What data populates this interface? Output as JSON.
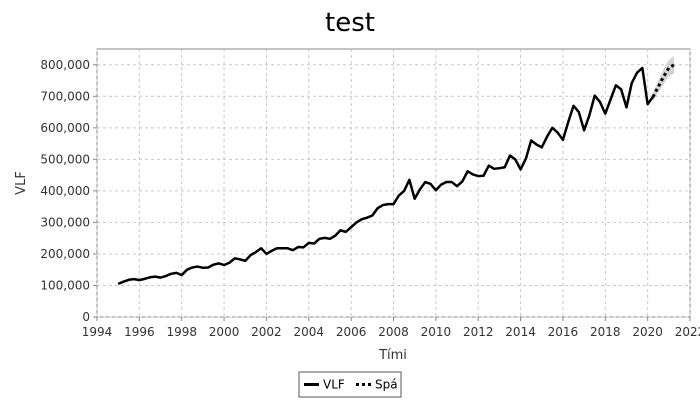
{
  "chart_data": {
    "type": "line",
    "title": "test",
    "xlabel": "Tími",
    "ylabel": "VLF",
    "xlim": [
      1994,
      2022
    ],
    "ylim": [
      0,
      850000
    ],
    "x_ticks": [
      1994,
      1996,
      1998,
      2000,
      2002,
      2004,
      2006,
      2008,
      2010,
      2012,
      2014,
      2016,
      2018,
      2020,
      2022
    ],
    "y_ticks": [
      0,
      100000,
      200000,
      300000,
      400000,
      500000,
      600000,
      700000,
      800000
    ],
    "y_tick_labels": [
      "0",
      "100,000",
      "200,000",
      "300,000",
      "400,000",
      "500,000",
      "600,000",
      "700,000",
      "800,000"
    ],
    "grid": true,
    "legend_position": "bottom-center",
    "series": [
      {
        "name": "VLF",
        "style": "solid",
        "color": "#000000",
        "x": [
          1995.0,
          1995.25,
          1995.5,
          1995.75,
          1996.0,
          1996.25,
          1996.5,
          1996.75,
          1997.0,
          1997.25,
          1997.5,
          1997.75,
          1998.0,
          1998.25,
          1998.5,
          1998.75,
          1999.0,
          1999.25,
          1999.5,
          1999.75,
          2000.0,
          2000.25,
          2000.5,
          2000.75,
          2001.0,
          2001.25,
          2001.5,
          2001.75,
          2002.0,
          2002.25,
          2002.5,
          2002.75,
          2003.0,
          2003.25,
          2003.5,
          2003.75,
          2004.0,
          2004.25,
          2004.5,
          2004.75,
          2005.0,
          2005.25,
          2005.5,
          2005.75,
          2006.0,
          2006.25,
          2006.5,
          2006.75,
          2007.0,
          2007.25,
          2007.5,
          2007.75,
          2008.0,
          2008.25,
          2008.5,
          2008.75,
          2009.0,
          2009.25,
          2009.5,
          2009.75,
          2010.0,
          2010.25,
          2010.5,
          2010.75,
          2011.0,
          2011.25,
          2011.5,
          2011.75,
          2012.0,
          2012.25,
          2012.5,
          2012.75,
          2013.0,
          2013.25,
          2013.5,
          2013.75,
          2014.0,
          2014.25,
          2014.5,
          2014.75,
          2015.0,
          2015.25,
          2015.5,
          2015.75,
          2016.0,
          2016.25,
          2016.5,
          2016.75,
          2017.0,
          2017.25,
          2017.5,
          2017.75,
          2018.0,
          2018.25,
          2018.5,
          2018.75,
          2019.0,
          2019.25,
          2019.5,
          2019.75,
          2020.0,
          2020.25
        ],
        "values": [
          105000,
          112000,
          118000,
          120000,
          117000,
          121000,
          126000,
          128000,
          125000,
          130000,
          137000,
          140000,
          133000,
          150000,
          157000,
          160000,
          156000,
          157000,
          166000,
          170000,
          165000,
          172000,
          186000,
          183000,
          178000,
          196000,
          206000,
          218000,
          200000,
          210000,
          218000,
          218000,
          218000,
          212000,
          222000,
          221000,
          235000,
          233000,
          248000,
          251000,
          248000,
          258000,
          275000,
          270000,
          285000,
          300000,
          310000,
          315000,
          322000,
          345000,
          355000,
          358000,
          358000,
          385000,
          400000,
          435000,
          375000,
          405000,
          428000,
          422000,
          402000,
          420000,
          428000,
          428000,
          415000,
          430000,
          462000,
          452000,
          447000,
          448000,
          480000,
          470000,
          472000,
          475000,
          512000,
          500000,
          468000,
          502000,
          560000,
          547000,
          538000,
          572000,
          600000,
          585000,
          562000,
          618000,
          670000,
          650000,
          592000,
          640000,
          702000,
          682000,
          645000,
          690000,
          735000,
          722000,
          665000,
          742000,
          775000,
          790000,
          675000,
          698000
        ]
      },
      {
        "name": "Spá",
        "style": "dashed",
        "color": "#000000",
        "x": [
          2020.25,
          2020.5,
          2020.75,
          2021.0,
          2021.25
        ],
        "values": [
          698000,
          730000,
          762000,
          790000,
          800000
        ],
        "band_upper": [
          712000,
          750000,
          786000,
          815000,
          828000
        ],
        "band_lower": [
          685000,
          712000,
          738000,
          764000,
          772000
        ],
        "band_color": "#cccccc"
      }
    ]
  }
}
